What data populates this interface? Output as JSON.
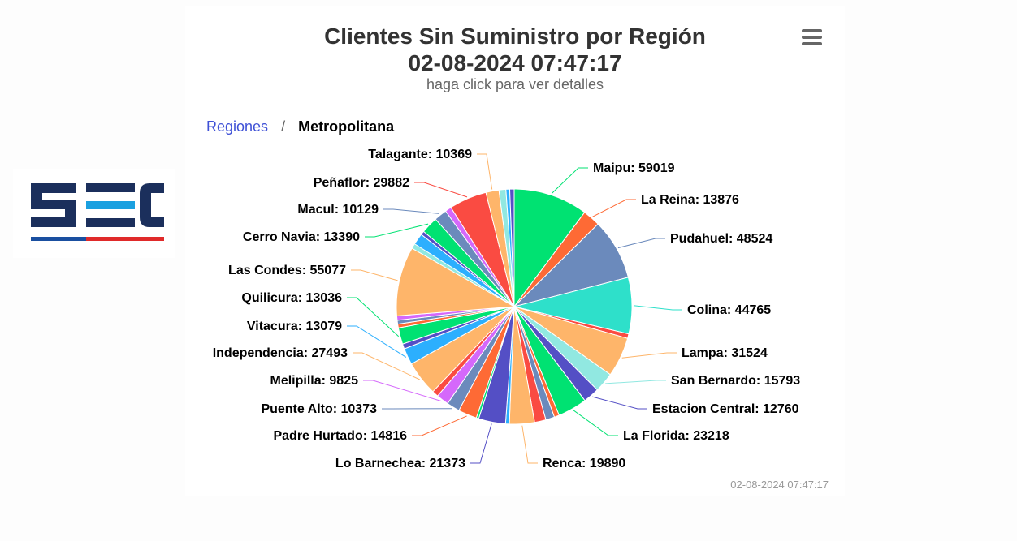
{
  "header": {
    "title_line1": "Clientes Sin Suministro por Región",
    "title_line2": "02-08-2024 07:47:17",
    "subtitle": "haga click para ver detalles"
  },
  "breadcrumb": {
    "root": "Regiones",
    "separator": "/",
    "current": "Metropolitana"
  },
  "logo": {
    "text": "SEC",
    "colors": {
      "navy": "#1b2f5c",
      "cyan": "#1aa0e0",
      "blue": "#1a4fa0",
      "red": "#e02a2a"
    }
  },
  "menu": {
    "icon": "hamburger-menu-icon"
  },
  "credit": "02-08-2024 07:47:17",
  "chart_data": {
    "type": "pie",
    "title": "Clientes Sin Suministro por Región",
    "slices": [
      {
        "name": "Maipu",
        "value": 59019,
        "color": "#00e272",
        "label": "Maipu: 59019"
      },
      {
        "name": "La Reina",
        "value": 13876,
        "color": "#fe6a35",
        "label": "La Reina: 13876"
      },
      {
        "name": "Pudahuel",
        "value": 48524,
        "color": "#6b8abc",
        "label": "Pudahuel: 48524"
      },
      {
        "name": "Colina",
        "value": 44765,
        "color": "#2ee0ca",
        "label": "Colina: 44765"
      },
      {
        "name": "",
        "value": 3600,
        "color": "#fa4b42",
        "label": ""
      },
      {
        "name": "Lampa",
        "value": 31524,
        "color": "#feb56a",
        "label": "Lampa: 31524"
      },
      {
        "name": "San Bernardo",
        "value": 15793,
        "color": "#91e8e1",
        "label": "San Bernardo: 15793"
      },
      {
        "name": "Estacion Central",
        "value": 12760,
        "color": "#544fc5",
        "label": "Estacion Central: 12760"
      },
      {
        "name": "La Florida",
        "value": 23218,
        "color": "#00e272",
        "label": "La Florida: 23218"
      },
      {
        "name": "",
        "value": 4000,
        "color": "#fe6a35",
        "label": ""
      },
      {
        "name": "",
        "value": 7000,
        "color": "#6b8abc",
        "label": ""
      },
      {
        "name": "",
        "value": 9000,
        "color": "#fa4b42",
        "label": ""
      },
      {
        "name": "Renca",
        "value": 19890,
        "color": "#feb56a",
        "label": "Renca: 19890"
      },
      {
        "name": "",
        "value": 3000,
        "color": "#2caffe",
        "label": ""
      },
      {
        "name": "Lo Barnechea",
        "value": 21373,
        "color": "#544fc5",
        "label": "Lo Barnechea: 21373"
      },
      {
        "name": "",
        "value": 2000,
        "color": "#00e272",
        "label": ""
      },
      {
        "name": "Padre Hurtado",
        "value": 14816,
        "color": "#fe6a35",
        "label": "Padre Hurtado: 14816"
      },
      {
        "name": "Puente Alto",
        "value": 10373,
        "color": "#6b8abc",
        "label": "Puente Alto: 10373"
      },
      {
        "name": "Melipilla",
        "value": 9825,
        "color": "#d568fb",
        "label": "Melipilla: 9825"
      },
      {
        "name": "",
        "value": 5000,
        "color": "#fa4b42",
        "label": ""
      },
      {
        "name": "Independencia",
        "value": 27493,
        "color": "#feb56a",
        "label": "Independencia: 27493"
      },
      {
        "name": "Vitacura",
        "value": 13079,
        "color": "#2caffe",
        "label": "Vitacura: 13079"
      },
      {
        "name": "",
        "value": 4000,
        "color": "#544fc5",
        "label": ""
      },
      {
        "name": "Quilicura",
        "value": 13036,
        "color": "#00e272",
        "label": "Quilicura: 13036"
      },
      {
        "name": "",
        "value": 3000,
        "color": "#fe6a35",
        "label": ""
      },
      {
        "name": "",
        "value": 3000,
        "color": "#6b8abc",
        "label": ""
      },
      {
        "name": "",
        "value": 3500,
        "color": "#d568fb",
        "label": ""
      },
      {
        "name": "Las Condes",
        "value": 55077,
        "color": "#feb56a",
        "label": "Las Condes: 55077"
      },
      {
        "name": "",
        "value": 4000,
        "color": "#91e8e1",
        "label": ""
      },
      {
        "name": "",
        "value": 9000,
        "color": "#2caffe",
        "label": ""
      },
      {
        "name": "",
        "value": 3000,
        "color": "#544fc5",
        "label": ""
      },
      {
        "name": "Cerro Navia",
        "value": 13390,
        "color": "#00e272",
        "label": "Cerro Navia: 13390"
      },
      {
        "name": "Macul",
        "value": 10129,
        "color": "#6b8abc",
        "label": "Macul: 10129"
      },
      {
        "name": "",
        "value": 5000,
        "color": "#d568fb",
        "label": ""
      },
      {
        "name": "Peñaflor",
        "value": 29882,
        "color": "#fa4b42",
        "label": "Peñaflor: 29882"
      },
      {
        "name": "Talagante",
        "value": 10369,
        "color": "#feb56a",
        "label": "Talagante: 10369"
      },
      {
        "name": "",
        "value": 5500,
        "color": "#91e8e1",
        "label": ""
      },
      {
        "name": "",
        "value": 3000,
        "color": "#2caffe",
        "label": ""
      },
      {
        "name": "",
        "value": 3500,
        "color": "#544fc5",
        "label": ""
      }
    ]
  }
}
